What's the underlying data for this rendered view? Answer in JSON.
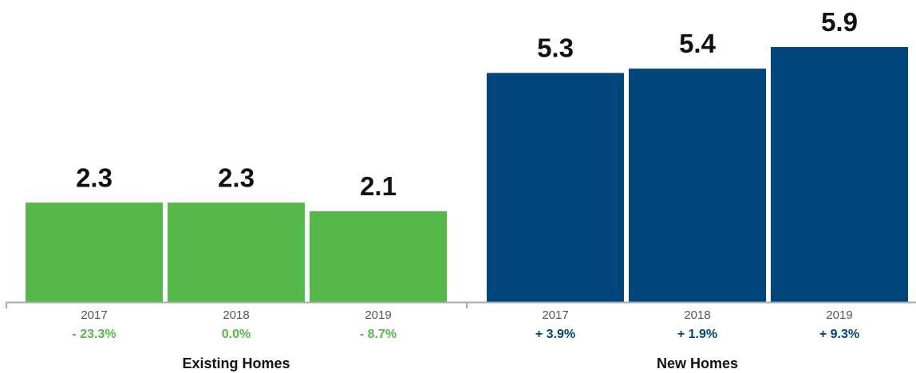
{
  "chart_data": {
    "type": "bar",
    "groups": [
      {
        "name": "Existing Homes",
        "color": "#54b948",
        "pct_color": "#54b948",
        "categories": [
          "2017",
          "2018",
          "2019"
        ],
        "values": [
          2.3,
          2.3,
          2.1
        ],
        "value_labels": [
          "2.3",
          "2.3",
          "2.1"
        ],
        "changes": [
          "- 23.3%",
          "0.0%",
          "- 8.7%"
        ]
      },
      {
        "name": "New Homes",
        "color": "#00457c",
        "pct_color": "#00457c",
        "categories": [
          "2017",
          "2018",
          "2019"
        ],
        "values": [
          5.3,
          5.4,
          5.9
        ],
        "value_labels": [
          "5.3",
          "5.4",
          "5.9"
        ],
        "changes": [
          "+ 3.9%",
          "+ 1.9%",
          "+ 9.3%"
        ]
      }
    ],
    "title": "",
    "xlabel": "",
    "ylabel": "",
    "ylim": [
      0,
      6.4
    ],
    "grid": false,
    "axis_color": "#aaaaaa"
  }
}
